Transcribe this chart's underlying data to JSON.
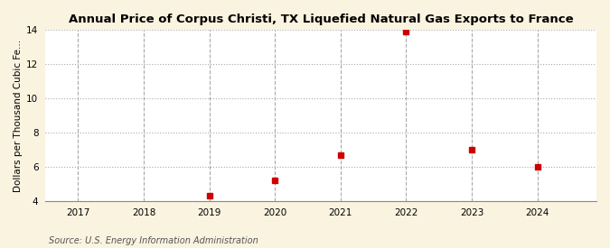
{
  "title": "Annual Price of Corpus Christi, TX Liquefied Natural Gas Exports to France",
  "ylabel": "Dollars per Thousand Cubic Fe...",
  "source": "Source: U.S. Energy Information Administration",
  "x_values": [
    2019,
    2020,
    2021,
    2022,
    2023,
    2024
  ],
  "y_values": [
    4.32,
    5.22,
    6.71,
    13.91,
    7.02,
    6.02
  ],
  "xlim": [
    2016.5,
    2024.9
  ],
  "ylim": [
    4,
    14
  ],
  "yticks": [
    4,
    6,
    8,
    10,
    12,
    14
  ],
  "xticks": [
    2017,
    2018,
    2019,
    2020,
    2021,
    2022,
    2023,
    2024
  ],
  "marker_color": "#cc0000",
  "marker": "s",
  "marker_size": 4,
  "background_color": "#faf3e0",
  "plot_bg_color": "#ffffff",
  "grid_color_h": "#aaaaaa",
  "grid_color_v": "#aaaaaa",
  "title_fontsize": 9.5,
  "label_fontsize": 7.5,
  "tick_fontsize": 7.5,
  "source_fontsize": 7
}
